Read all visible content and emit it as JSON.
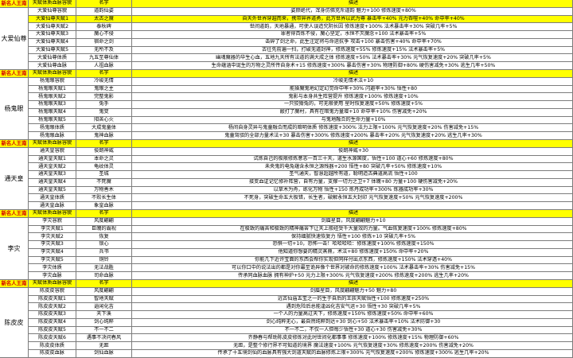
{
  "sheet": {
    "header_colors": {
      "row_bg": "#ffff00",
      "corner_text": "#d40000"
    },
    "sections": [
      {
        "title": "新名人王南",
        "label": "大爱仙尊",
        "head": {
          "item": "天赋体质血脉容貌",
          "name": "名字",
          "desc": "描述"
        },
        "rows": [
          {
            "item": "大爱仙尊容貌",
            "name": "道韵仙姿",
            "desc": "姿颜绝代，浑身仿佛充斥道韵 魅力+100 修炼速度+80%",
            "hl": false
          },
          {
            "item": "大爱仙尊天赋1",
            "name": "太古之魔",
            "desc": "自天外世界穿越而来，携带异界道勇，此方世界以武为尊 暴击率+40% 元力吞噬+40% 命中率+40%",
            "hl": true
          },
          {
            "item": "大爱仙尊天赋2",
            "name": "泰秋碑",
            "desc": "世间道韵，天地暴通，可使人误造究阴长因 修炼速度+100% 法术暴击率+30% 突破几率+5%",
            "hl": false
          },
          {
            "item": "大爱仙尊天赋3",
            "name": "魔心不侵",
            "desc": "罪者得百炼不侵，魔心坚定，水恒不灭魔念+100 法术暴击率+5%",
            "hl": false
          },
          {
            "item": "大爱仙尊天赋4",
            "name": "宿命之剑",
            "desc": "击碎了剑之命，此生注定将与命运抗争 攻击+100 暴击伤害+40% 命中率+70%",
            "hl": false
          },
          {
            "item": "大爱仙尊天赋5",
            "name": "无所不及",
            "desc": "古往先前遍一扫，打破无道封神，修炼速度+55% 修炼速度+15% 法术暴击率+5%",
            "hl": false
          },
          {
            "item": "大爱仙尊体质",
            "name": "九五至尊仙体",
            "desc": "幽魂魔器的华生心血，五地九天所有法道的满大成之体 修炼速度+50% 法术暴击率+30% 元气恢复速度+20% 突破几率+5%",
            "hl": false
          },
          {
            "item": "大爱仙尊血脉",
            "name": "人祖血脉",
            "desc": "生命蕴涵中诞生的万物之灵所传自身术+15 修炼速度+300% 暴击伤害+30% 物理防御+80% 硬伤害减免+30% 逃生几率+50%",
            "hl": false
          }
        ]
      },
      {
        "title": "新名人王南",
        "label": "杨鬼眼",
        "head": {
          "item": "天赋体质血脉容貌",
          "name": "名字",
          "desc": "描述"
        },
        "rows": [
          {
            "item": "杨鬼眼容貌",
            "name": "冷峻无情",
            "desc": "冷峻无情术法+10",
            "hl": false
          },
          {
            "item": "杨鬼眼天赋1",
            "name": "鬼眼之主",
            "desc": "能操魔鬼地幻定幻觉命中率+30% 闪避率+30% 悟性+80",
            "hl": false
          },
          {
            "item": "杨鬼眼天赋2",
            "name": "完整鬼影",
            "desc": "鬼影与本身共生阵营提升 修炼速度+100% 修炼速度+10%",
            "hl": false
          },
          {
            "item": "杨鬼眼天赋3",
            "name": "兔手",
            "desc": "一只狡猾兔的，可无限使用 星时恢复速度+50% 修炼速度+5%",
            "hl": false
          },
          {
            "item": "杨鬼眼天赋4",
            "name": "鬼变",
            "desc": "敲打了魔村，具有在暗鬼力量增+10 命中率+10% 伤害减免+20%",
            "hl": false
          },
          {
            "item": "杨鬼眼天赋5",
            "name": "阳苦心火",
            "desc": "与鬼地融合的生命力量+10%",
            "hl": false
          },
          {
            "item": "杨鬼眼体质",
            "name": "大成鬼童体",
            "desc": "杨间自身灵异与鬼童融合而成的暗明体质 修炼速度+300% 法力上限+100% 元气恢复速度+20% 伤害减免+15%",
            "hl": false
          },
          {
            "item": "杨鬼眼血脉",
            "name": "鬼神血脉",
            "desc": "鬼童驾驭的全部力量术法+30 暴击伤害+300% 修炼速度+200% 暴击率+20% 元气恢复速度+20% 逃生几率+30%",
            "hl": false
          }
        ]
      },
      {
        "title": "新名人王南",
        "label": "通天皇",
        "head": {
          "item": "天赋体质血脉容貌",
          "name": "名字",
          "desc": "描述"
        },
        "rows": [
          {
            "item": "通天皇容貌",
            "name": "俊朗神威",
            "desc": "俊朗神威+30",
            "hl": false
          },
          {
            "item": "通天皇天赋1",
            "name": "本命之灵",
            "desc": "试炼自己的极限修炼意志一百三十天，道生水源国度，悟性+100 道心+60 修炼速度+80%",
            "hl": false
          },
          {
            "item": "通天皇天赋2",
            "name": "龟纹体灵",
            "desc": "未央鬼的电兔蕴含永恒之源残器+200 悟性+80 突破几率+50% 修炼速度+10%",
            "hl": false
          },
          {
            "item": "通天皇天赋3",
            "name": "圣城",
            "desc": "圣气通天，智慧超越所有道，聪明造古典道高流 悟性+100",
            "hl": false
          },
          {
            "item": "通天皇天赋4",
            "name": "不死魔",
            "desc": "接变血证记忆修补阵营，自有力量，支撑一切力之卫+7 体魄+80 力量+100 硬伤害减免+20%",
            "hl": false
          },
          {
            "item": "通天皇天赋5",
            "name": "万物善木",
            "desc": "以草木为舟，练化万物 悟性+150 炼丹成功率+300% 炼器成功率+30%",
            "hl": false
          },
          {
            "item": "通天皇体质",
            "name": "不败长生体",
            "desc": "不死身，突破生命五大极错，长生者，破解永恒五大封印 元气恢复速度+50% 元气恢复速度+200%",
            "hl": false
          },
          {
            "item": "通天皇血脉",
            "name": "象皇血脉",
            "desc": "",
            "hl": false
          }
        ]
      },
      {
        "title": "新名人王南",
        "label": "李灾",
        "head": {
          "item": "天赋体质血脉容貌",
          "name": "名字",
          "desc": "描述"
        },
        "rows": [
          {
            "item": "李灾容貌",
            "name": "风度翩翩",
            "desc": "剑眉星目，风度翩翩魅力+10",
            "hl": false
          },
          {
            "item": "李灾天赋1",
            "name": "巨魄的霸视",
            "desc": "在极致的痛苦和极致的精神痛苦下让天上般经受千大量效的力量。气血恢复速度+100% 修炼速度+80%",
            "hl": false
          },
          {
            "item": "李灾天赋2",
            "name": "恢复",
            "desc": "保持细腻快速恢复力 悟性+100 修炼+10 突破几率+5%",
            "hl": false
          },
          {
            "item": "李灾天赋3",
            "name": "锁心",
            "desc": "恐惧一切+10，恐怖一击！哈哈哈哈：修炼速度+100% 修炼速度+150%",
            "hl": false
          },
          {
            "item": "李灾天赋4",
            "name": "兵书",
            "desc": "他知道你想要的精灵蒸鼎，术法+80 修炼速度+150% 命中率+20%",
            "hl": false
          },
          {
            "item": "李灾天赋5",
            "name": "铜铃",
            "desc": "你能几下近许宝面的东西会帮你实现但同样付出点东西，修炼速度+150% 法术穿透+40%",
            "hl": false
          },
          {
            "item": "李灾体质",
            "name": "无法战胜",
            "desc": "可以你口中的说法出的都是对你最至诡异像个世界对被命的修炼速度+100% 法术暴击率+30% 伤害减免+15%",
            "hl": false
          },
          {
            "item": "李灾血脉",
            "name": "司命血脉",
            "desc": "传承同血脉血脉 拥有神炉+50 元力上限+300% 元气恢复速度+200% 修炼速度+200% 逃生几率+20%",
            "hl": false
          }
        ]
      },
      {
        "title": "新名人王南",
        "label": "陈皮皮",
        "head": {
          "item": "天赋体质血脉容貌",
          "name": "名字",
          "desc": "描述"
        },
        "rows": [
          {
            "item": "陈皮皮容貌",
            "name": "风度翩翩",
            "desc": "剑眉星目，风度翩翩魅力+50 魅力+80",
            "hl": false
          },
          {
            "item": "陈皮皮天赋1",
            "name": "智地天赋",
            "desc": "远古仙庙五宝之一的生于自后的王族天赋悟性+100 修炼速度+250%",
            "hl": false
          },
          {
            "item": "陈皮皮天赋2",
            "name": "逍闲化吉",
            "desc": "遇到危险后总能逢凶化吉安气运+30 悟性+30 突破几率+5%",
            "hl": false
          },
          {
            "item": "陈皮皮天赋3",
            "name": "天下溪",
            "desc": "一个人的力量高过天下，修炼速度+150% 修炼速度+50% 命中率+60%",
            "hl": false
          },
          {
            "item": "陈皮皮天赋4",
            "name": "剑心纯粹",
            "desc": "剑心纯粹无心，最自然纯粹到达+30 剑心+50 法术暴击率+10% 法术防御+30",
            "hl": false
          },
          {
            "item": "陈皮皮天赋5",
            "name": "不一不二",
            "desc": "不一不二，不仅一人但每少悟性+30 道心+30 伤害减免+30%",
            "hl": false
          },
          {
            "item": "陈皮皮天赋6",
            "name": "遇事不决问春风",
            "desc": "齐静春与帮助陈皮皮修炼对此时世间化都事事 修炼速度+100% 修炼速度+15% 物理防御+60%",
            "hl": false
          },
          {
            "item": "陈皮皮体质",
            "name": "无距",
            "desc": "无距，是整个修行界不可知道的境界 魔法速度+100% 元气恢复速度+30% 修炼速度+200% 伤害减免+20%",
            "hl": false
          },
          {
            "item": "陈皮皮血脉",
            "name": "剑仙血脉",
            "desc": "传承了十五境剑仙的血脉具有强大剑道天赋的血脉修炼上限+300% 元气恢复速度+200% 修炼速度+300% 逃生几率+20%",
            "hl": false
          }
        ]
      }
    ]
  }
}
